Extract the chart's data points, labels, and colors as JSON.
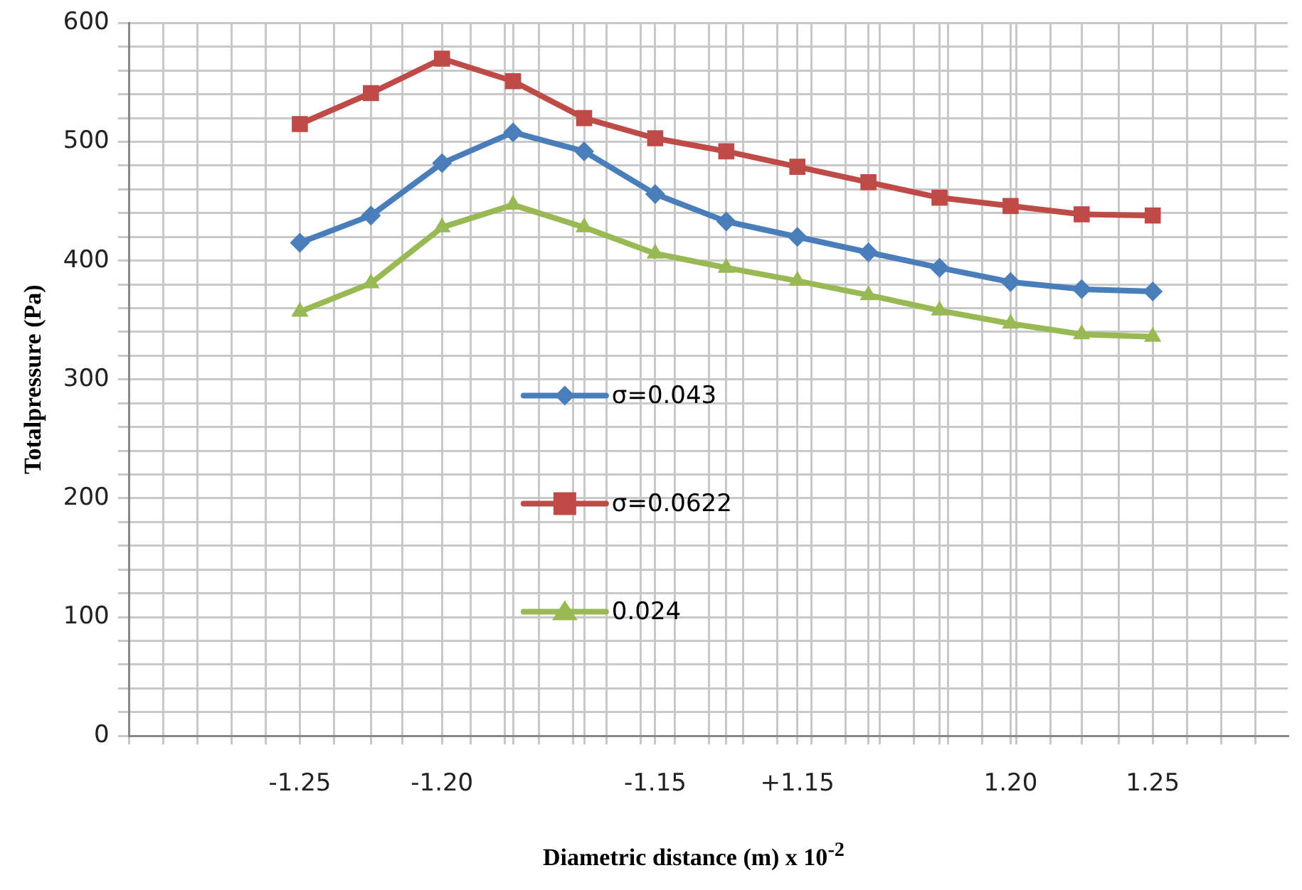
{
  "chart_data": {
    "type": "line",
    "xlabel": "Diametric distance (m)  x 10$^{-2}$",
    "ylabel": "Totalpressure (Pa)",
    "categories": [
      "-1.25",
      null,
      "-1.20",
      null,
      null,
      "-1.15",
      null,
      "+1.15",
      null,
      null,
      "1.20",
      null,
      "1.25"
    ],
    "ylim": [
      0,
      600
    ],
    "yticks": [
      0,
      {
        "value": 20,
        "label": null
      },
      {
        "value": 40,
        "label": null
      },
      {
        "value": 60,
        "label": null
      },
      {
        "value": 80,
        "label": null
      },
      100,
      {
        "value": 120,
        "label": null
      },
      {
        "value": 140,
        "label": null
      },
      {
        "value": 160,
        "label": null
      },
      {
        "value": 180,
        "label": null
      },
      200,
      {
        "value": 220,
        "label": null
      },
      {
        "value": 240,
        "label": null
      },
      {
        "value": 260,
        "label": null
      },
      {
        "value": 280,
        "label": null
      },
      300,
      {
        "value": 320,
        "label": null
      },
      {
        "value": 340,
        "label": null
      },
      {
        "value": 360,
        "label": null
      },
      {
        "value": 380,
        "label": null
      },
      400,
      {
        "value": 420,
        "label": null
      },
      {
        "value": 440,
        "label": null
      },
      {
        "value": 460,
        "label": null
      },
      {
        "value": 480,
        "label": null
      },
      500,
      {
        "value": 520,
        "label": null
      },
      {
        "value": 540,
        "label": null
      },
      {
        "value": 560,
        "label": null
      },
      {
        "value": 580,
        "label": null
      },
      600
    ],
    "grid": true,
    "legend": "center",
    "line_style": "solid",
    "series": [
      {
        "name": "σ=0.043",
        "color": "#4a7ebb",
        "marker": "diamond",
        "values": [
          415,
          438,
          482,
          508,
          492,
          456,
          433,
          420,
          407,
          394,
          382,
          376,
          374
        ]
      },
      {
        "name": "σ=0.0622",
        "color": "#be4b48",
        "marker": "square",
        "values": [
          515,
          541,
          570,
          551,
          520,
          503,
          492,
          479,
          466,
          453,
          446,
          439,
          438
        ]
      },
      {
        "name": "0.024",
        "color": "#98b954",
        "marker": "triangle",
        "values": [
          357,
          381,
          428,
          447,
          428,
          406,
          394,
          383,
          371,
          358,
          347,
          338,
          336
        ]
      }
    ]
  }
}
